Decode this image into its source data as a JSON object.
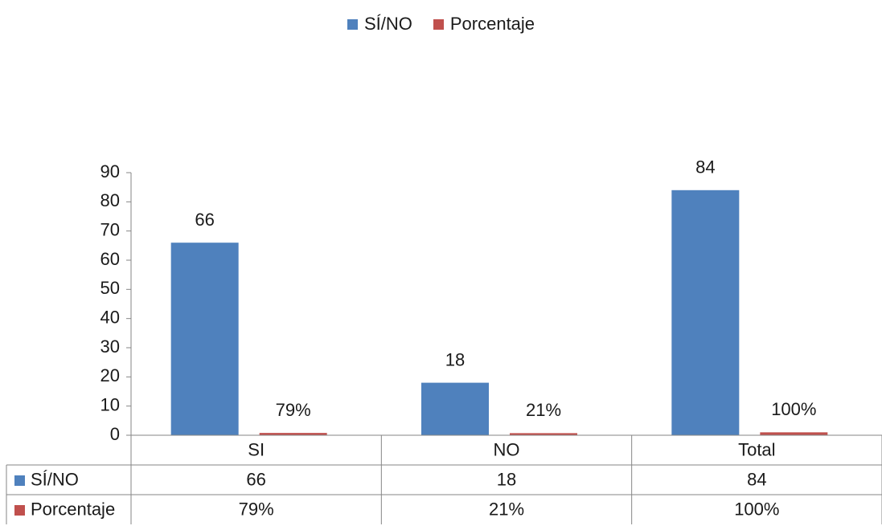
{
  "chart_data": {
    "type": "bar",
    "categories": [
      "SI",
      "NO",
      "Total"
    ],
    "series": [
      {
        "name": "SÍ/NO",
        "values": [
          66,
          18,
          84
        ],
        "labels": [
          "66",
          "18",
          "84"
        ],
        "color": "#4F81BD"
      },
      {
        "name": "Porcentaje",
        "values": [
          0.79,
          0.21,
          1.0
        ],
        "labels": [
          "79%",
          "21%",
          "100%"
        ],
        "color": "#C0504D"
      }
    ],
    "ylim": [
      0,
      90
    ],
    "yticks": [
      "0",
      "10",
      "20",
      "30",
      "40",
      "50",
      "60",
      "70",
      "80",
      "90"
    ],
    "legend": "top",
    "data_table": true,
    "gridlines": false
  }
}
